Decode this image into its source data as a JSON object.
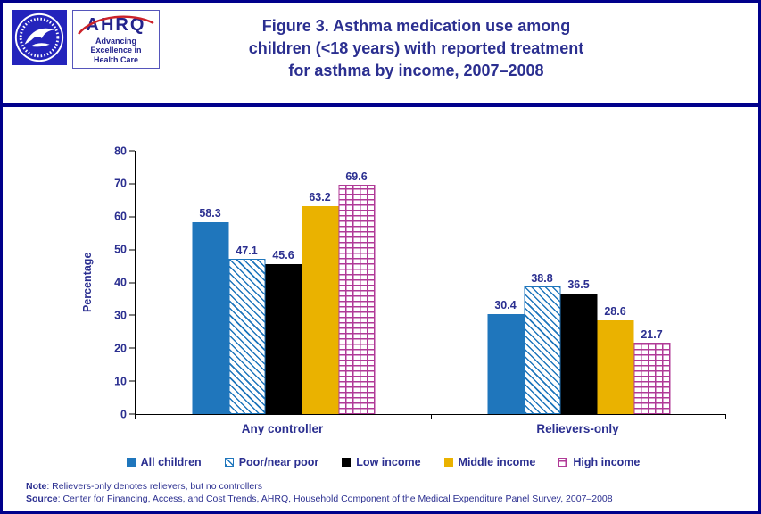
{
  "header": {
    "title_lines": [
      "Figure 3. Asthma medication use among",
      "children (<18 years) with reported treatment",
      "for asthma by income, 2007–2008"
    ],
    "ahrq": {
      "name": "AHRQ",
      "tagline_lines": [
        "Advancing",
        "Excellence in",
        "Health Care"
      ]
    }
  },
  "chart_data": {
    "type": "bar",
    "title": "Figure 3. Asthma medication use among children (<18 years) with reported treatment for asthma by income, 2007–2008",
    "xlabel": "",
    "ylabel": "Percentage",
    "ylim": [
      0,
      80
    ],
    "yticks": [
      0,
      10,
      20,
      30,
      40,
      50,
      60,
      70,
      80
    ],
    "grid": false,
    "legend_position": "bottom",
    "categories": [
      "Any controller",
      "Relievers-only"
    ],
    "series": [
      {
        "name": "All children",
        "values": [
          58.3,
          30.4
        ],
        "color": "#1f76bc",
        "pattern": "solid"
      },
      {
        "name": "Poor/near poor",
        "values": [
          47.1,
          38.8
        ],
        "color": "#1f76bc",
        "pattern": "diagonal-hatch"
      },
      {
        "name": "Low income",
        "values": [
          45.6,
          36.5
        ],
        "color": "#000000",
        "pattern": "solid"
      },
      {
        "name": "Middle income",
        "values": [
          63.2,
          28.6
        ],
        "color": "#eab200",
        "pattern": "solid"
      },
      {
        "name": "High income",
        "values": [
          69.6,
          21.7
        ],
        "color": "#b03a97",
        "pattern": "brick"
      }
    ]
  },
  "footnotes": {
    "note_label": "Note",
    "note_rest": ": Relievers-only denotes relievers, but no controllers",
    "source_label": "Source",
    "source_rest": ": Center for Financing, Access, and Cost Trends, AHRQ, Household Component of the Medical Expenditure Panel Survey, 2007–2008"
  },
  "colors": {
    "frame_navy": "#00008b",
    "text_navy": "#2b2f90",
    "hhs_blue": "#2424bc",
    "arc_red": "#cc2229"
  }
}
